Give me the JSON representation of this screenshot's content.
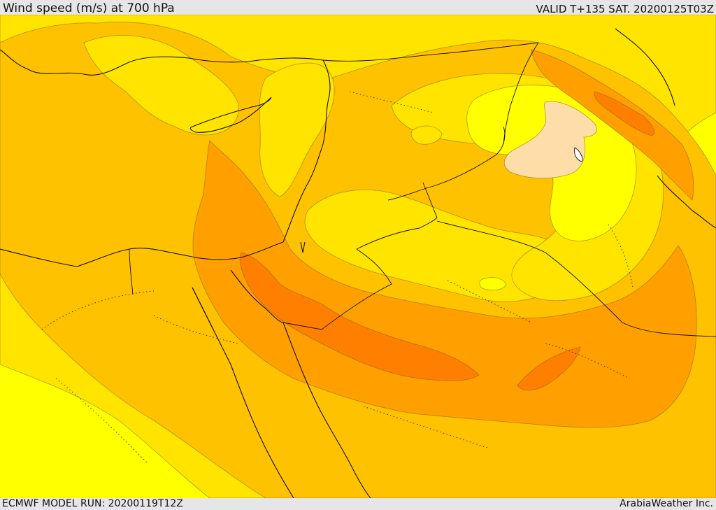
{
  "header": {
    "title": "Wind speed (m/s) at 700 hPa",
    "valid_time": "VALID T+135 SAT. 20200125T03Z"
  },
  "footer": {
    "model_run": "ECMWF MODEL RUN: 20200119T12Z",
    "provider": "ArabiaWeather Inc."
  },
  "colors": {
    "band_1": "#ffff00",
    "band_2": "#ffe400",
    "band_3": "#ffc200",
    "band_4": "#ffa000",
    "band_5": "#ff8000",
    "band_6": "#ffdda8"
  }
}
